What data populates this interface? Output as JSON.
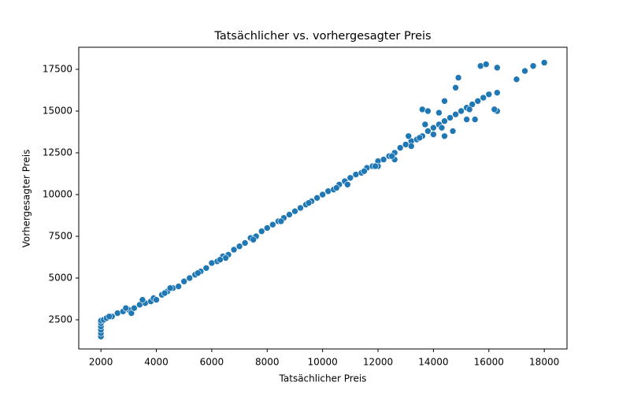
{
  "chart_data": {
    "type": "scatter",
    "title": "Tatsächlicher vs. vorhergesagter Preis",
    "x_label": "Tatsächlicher Preis",
    "y_label": "Vorhergesagter Preis",
    "color": "#1f77b4",
    "xlim": [
      1200,
      18820
    ],
    "ylim": [
      755,
      18820
    ],
    "xticks": [
      2000,
      4000,
      6000,
      8000,
      10000,
      12000,
      14000,
      16000,
      18000
    ],
    "yticks": [
      2500,
      5000,
      7500,
      10000,
      12500,
      15000,
      17500
    ],
    "x": [
      2000,
      2000,
      2000,
      2000,
      2000,
      2000,
      2100,
      2200,
      2400,
      2600,
      2800,
      3000,
      3100,
      3200,
      3400,
      3600,
      3800,
      3900,
      4000,
      4200,
      4400,
      4600,
      4800,
      5000,
      5200,
      5400,
      5600,
      5800,
      6000,
      6200,
      6400,
      6600,
      6800,
      7000,
      7200,
      7400,
      7600,
      7800,
      8000,
      8200,
      8400,
      8600,
      8800,
      9000,
      9200,
      9400,
      9600,
      9800,
      10000,
      10200,
      10400,
      10600,
      10800,
      11000,
      11200,
      11400,
      11600,
      11800,
      12000,
      12200,
      12400,
      12600,
      12800,
      13000,
      13200,
      13400,
      13600,
      13800,
      14000,
      14200,
      14400,
      14600,
      14800,
      15000,
      15200,
      15400,
      15600,
      15800,
      16000,
      16300,
      13600,
      13800,
      14200,
      14400,
      14800,
      14900,
      15700,
      15900,
      16300,
      17000,
      17300,
      17600,
      18000,
      16300,
      16200,
      14000,
      14400,
      14700,
      15200,
      15500,
      13200,
      12000,
      12600,
      2300,
      2900,
      3500,
      4500,
      5500,
      6500,
      7500,
      8500,
      9500,
      10500,
      11500,
      12500,
      13500,
      13100,
      13700,
      14300,
      15300,
      4300,
      6300,
      10900,
      11900
    ],
    "values": [
      1500,
      1700,
      1900,
      2100,
      2300,
      2450,
      2500,
      2600,
      2700,
      2900,
      3000,
      3100,
      2900,
      3200,
      3400,
      3500,
      3600,
      3800,
      3700,
      4000,
      4200,
      4400,
      4500,
      4800,
      5000,
      5200,
      5400,
      5600,
      5900,
      6000,
      6300,
      6400,
      6700,
      6900,
      7100,
      7400,
      7500,
      7800,
      8000,
      8200,
      8400,
      8600,
      8800,
      9000,
      9200,
      9400,
      9600,
      9800,
      10000,
      10200,
      10300,
      10600,
      10800,
      11000,
      11200,
      11300,
      11600,
      11700,
      12000,
      12100,
      12300,
      12500,
      12800,
      13000,
      13200,
      13300,
      13500,
      13800,
      14000,
      14200,
      14400,
      14600,
      14800,
      15000,
      15200,
      15400,
      15600,
      15800,
      16000,
      16100,
      15100,
      15000,
      14900,
      15600,
      16400,
      17000,
      17700,
      17800,
      17600,
      16900,
      17400,
      17700,
      17900,
      15000,
      15100,
      13600,
      13500,
      13800,
      14500,
      14500,
      12900,
      11700,
      12100,
      2700,
      3200,
      3700,
      4400,
      5300,
      6200,
      7300,
      8400,
      9500,
      10400,
      11400,
      12300,
      13400,
      13500,
      14200,
      14000,
      15100,
      4100,
      6100,
      10600,
      11700
    ]
  }
}
